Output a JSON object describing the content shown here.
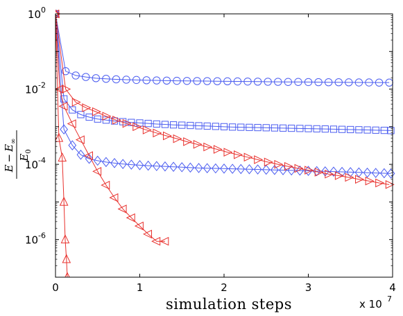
{
  "chart_data": {
    "type": "line",
    "xlabel": "simulation steps",
    "ylabel": {
      "numerator_E": "E",
      "numerator_minus": "−",
      "numerator_Einf": "E",
      "numerator_inf_sub": "∞",
      "denominator_E": "E",
      "denominator_sub": "0"
    },
    "x_multiplier": {
      "base": "x 10",
      "exponent": "7"
    },
    "xlim": [
      0,
      40000000
    ],
    "ylim": [
      1e-07,
      1
    ],
    "y_scale": "log",
    "grid": false,
    "x_ticks": [
      {
        "value": 0,
        "label": "0"
      },
      {
        "value": 10000000,
        "label": "1"
      },
      {
        "value": 20000000,
        "label": "2"
      },
      {
        "value": 30000000,
        "label": "3"
      },
      {
        "value": 40000000,
        "label": "4"
      }
    ],
    "y_ticks": [
      {
        "value": 1,
        "base": "10",
        "exp": "0"
      },
      {
        "value": 0.01,
        "base": "10",
        "exp": "-2"
      },
      {
        "value": 0.0001,
        "base": "10",
        "exp": "-4"
      },
      {
        "value": 1e-06,
        "base": "10",
        "exp": "-6"
      }
    ],
    "colors": {
      "blue": "#4a5cf0",
      "red": "#e8302c",
      "axis": "#000000"
    },
    "series": [
      {
        "color": "#4a5cf0",
        "marker": "circle",
        "x": [
          0,
          1200000,
          2400000,
          3600000,
          4800000,
          6000000,
          7200000,
          8400000,
          9600000,
          10800000,
          12000000,
          13200000,
          14400000,
          15600000,
          16800000,
          18000000,
          19200000,
          20400000,
          21600000,
          22800000,
          24000000,
          25200000,
          26400000,
          27600000,
          28800000,
          30000000,
          31200000,
          32400000,
          33600000,
          34800000,
          36000000,
          37200000,
          38400000,
          39600000
        ],
        "y": [
          1,
          0.03,
          0.023,
          0.021,
          0.0195,
          0.0188,
          0.0182,
          0.0178,
          0.0175,
          0.0172,
          0.017,
          0.0168,
          0.0166,
          0.0165,
          0.0164,
          0.0163,
          0.0162,
          0.0161,
          0.016,
          0.0159,
          0.0158,
          0.0157,
          0.0156,
          0.0155,
          0.0155,
          0.0154,
          0.0153,
          0.0152,
          0.0152,
          0.0151,
          0.015,
          0.015,
          0.0149,
          0.0149
        ]
      },
      {
        "color": "#4a5cf0",
        "marker": "square",
        "x": [
          0,
          1000000,
          2000000,
          3000000,
          4000000,
          5000000,
          6000000,
          7000000,
          8000000,
          9000000,
          10000000,
          11000000,
          12000000,
          13000000,
          14000000,
          15000000,
          16000000,
          17000000,
          18000000,
          19000000,
          20000000,
          21000000,
          22000000,
          23000000,
          24000000,
          25000000,
          26000000,
          27000000,
          28000000,
          29000000,
          30000000,
          31000000,
          32000000,
          33000000,
          34000000,
          35000000,
          36000000,
          37000000,
          38000000,
          39000000,
          39800000
        ],
        "y": [
          1,
          0.0055,
          0.0028,
          0.0021,
          0.0018,
          0.0016,
          0.0015,
          0.00142,
          0.00136,
          0.0013,
          0.00126,
          0.00122,
          0.00118,
          0.00115,
          0.00112,
          0.0011,
          0.00108,
          0.00106,
          0.00104,
          0.00102,
          0.001,
          0.00098,
          0.00097,
          0.00096,
          0.00095,
          0.00094,
          0.00093,
          0.00092,
          0.00091,
          0.0009,
          0.00089,
          0.00088,
          0.00087,
          0.00086,
          0.00085,
          0.00084,
          0.00083,
          0.00082,
          0.00081,
          0.0008,
          0.00079
        ]
      },
      {
        "color": "#4a5cf0",
        "marker": "diamond",
        "x": [
          0,
          1000000,
          2000000,
          3000000,
          4000000,
          5000000,
          6000000,
          7000000,
          8000000,
          9000000,
          10000000,
          11000000,
          12000000,
          13000000,
          14000000,
          15000000,
          16000000,
          17000000,
          18000000,
          19000000,
          20000000,
          21000000,
          22000000,
          23000000,
          24000000,
          25000000,
          26000000,
          27000000,
          28000000,
          29000000,
          30000000,
          31000000,
          32000000,
          33000000,
          34000000,
          35000000,
          36000000,
          37000000,
          38000000,
          39000000,
          39800000
        ],
        "y": [
          1,
          0.00085,
          0.00032,
          0.00018,
          0.00014,
          0.000125,
          0.000115,
          0.000108,
          0.000102,
          9.8e-05,
          9.5e-05,
          9.2e-05,
          9e-05,
          8.8e-05,
          8.6e-05,
          8.4e-05,
          8.2e-05,
          8e-05,
          7.9e-05,
          7.8e-05,
          7.7e-05,
          7.6e-05,
          7.5e-05,
          7.4e-05,
          7.3e-05,
          7.2e-05,
          7.1e-05,
          7e-05,
          6.9e-05,
          6.8e-05,
          6.7e-05,
          6.6e-05,
          6.5e-05,
          6.4e-05,
          6.3e-05,
          6.2e-05,
          6.1e-05,
          6e-05,
          5.9e-05,
          5.8e-05,
          5.7e-05
        ]
      },
      {
        "color": "#e8302c",
        "marker": "triangle-right",
        "x": [
          0,
          1200000,
          2400000,
          3600000,
          4800000,
          6000000,
          7200000,
          8400000,
          9600000,
          10800000,
          12000000,
          13200000,
          14400000,
          15600000,
          16800000,
          18000000,
          19200000,
          20400000,
          21600000,
          22800000,
          24000000,
          25200000,
          26400000,
          27600000,
          28800000,
          30000000,
          31200000,
          32400000,
          33600000,
          34800000,
          36000000,
          37200000,
          38400000,
          39600000
        ],
        "y": [
          1,
          0.01,
          0.0045,
          0.0032,
          0.0025,
          0.0019,
          0.0015,
          0.00122,
          0.001,
          0.00082,
          0.00068,
          0.00057,
          0.00048,
          0.0004,
          0.00034,
          0.00029,
          0.00025,
          0.00021,
          0.00018,
          0.000155,
          0.000133,
          0.000115,
          0.0001,
          8.8e-05,
          7.8e-05,
          7e-05,
          6.2e-05,
          5.5e-05,
          5e-05,
          4.5e-05,
          4e-05,
          3.6e-05,
          3.2e-05,
          2.9e-05
        ]
      },
      {
        "color": "#e8302c",
        "marker": "triangle-left",
        "x": [
          0,
          500000,
          1000000,
          2000000,
          3000000,
          4000000,
          5000000,
          6000000,
          7000000,
          8000000,
          9000000,
          10000000,
          11000000,
          12000000,
          13000000
        ],
        "y": [
          1,
          0.01,
          0.0035,
          0.0012,
          0.00045,
          0.00017,
          6.5e-05,
          2.8e-05,
          1.3e-05,
          6.5e-06,
          3.8e-06,
          2.3e-06,
          1.4e-06,
          9e-07,
          9e-07
        ]
      },
      {
        "color": "#e8302c",
        "marker": "triangle-up",
        "x": [
          0,
          400000,
          800000,
          1000000,
          1150000,
          1300000,
          1400000
        ],
        "y": [
          1,
          0.0005,
          0.00015,
          1e-05,
          1e-06,
          3e-07,
          1e-07
        ]
      }
    ]
  }
}
